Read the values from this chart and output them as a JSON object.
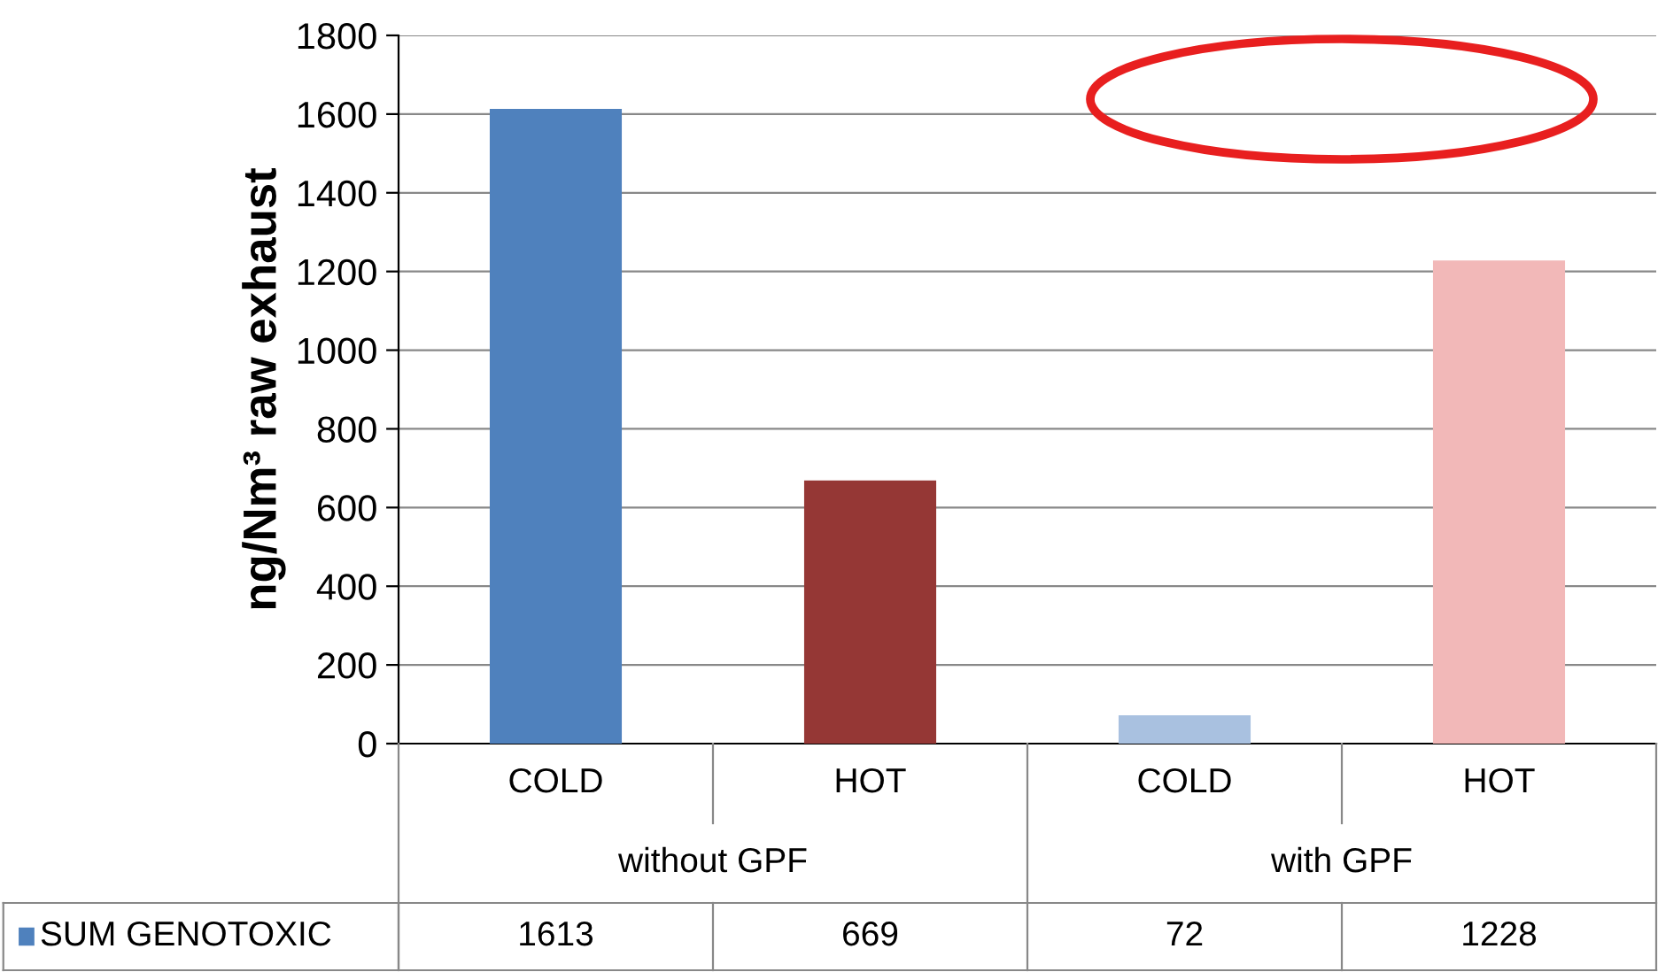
{
  "chart_data": {
    "type": "bar",
    "ylabel": "ng/Nm³ raw exhaust",
    "categories": [
      "COLD",
      "HOT",
      "COLD",
      "HOT"
    ],
    "annotations": [
      "without GPF",
      "with GPF"
    ],
    "series": [
      {
        "name": "SUM GENOTOXIC",
        "color": "#4f81bd",
        "colors": [
          "#4f81bd",
          "#953735",
          "#a9c1e0",
          "#f2b8b8"
        ],
        "values": [
          1613,
          669,
          72,
          1228
        ]
      }
    ],
    "ylim": [
      0,
      1800
    ],
    "yticks": [
      0,
      200,
      400,
      600,
      800,
      1000,
      1200,
      1400,
      1600,
      1800
    ],
    "grid": "y",
    "data_labels": true,
    "legend": "bottom left"
  }
}
